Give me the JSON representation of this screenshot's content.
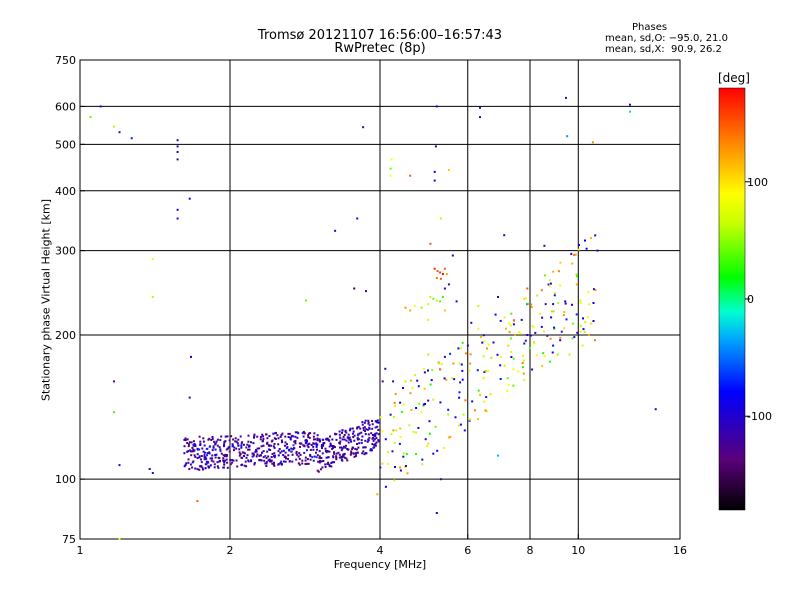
{
  "title_lines": [
    "Tromsø 20121107 16:56:00–16:57:43",
    "RwPretec (8p)"
  ],
  "stats": {
    "heading": "Phases",
    "line_o": "mean, sd,O: −95.0, 21.0",
    "line_x": "mean, sd,X:  90.9, 26.2"
  },
  "chart_data": {
    "type": "scatter",
    "xlabel": "Frequency [MHz]",
    "ylabel": "Stationary phase Virtual Height [km]",
    "x_scale": "log",
    "y_scale": "log",
    "xlim": [
      1,
      16
    ],
    "ylim": [
      75,
      750
    ],
    "x_ticks": [
      1,
      2,
      4,
      6,
      8,
      10,
      16
    ],
    "y_ticks": [
      75,
      100,
      200,
      300,
      400,
      500,
      600,
      750
    ],
    "x_gridlines": [
      2,
      4,
      6,
      8,
      10
    ],
    "y_gridlines": [
      100,
      200,
      300,
      400,
      500,
      600
    ],
    "grid": true,
    "colorbar": {
      "label": "[deg]",
      "range": [
        -180,
        180
      ],
      "ticks": [
        100,
        0,
        -100
      ]
    },
    "series": [
      {
        "points": [
          [
            1.05,
            570,
            40
          ],
          [
            1.1,
            600,
            -100
          ],
          [
            1.17,
            545,
            60
          ],
          [
            1.2,
            530,
            -110
          ],
          [
            1.27,
            515,
            -70
          ],
          [
            1.57,
            510,
            -120
          ],
          [
            1.57,
            495,
            -110
          ],
          [
            1.57,
            482,
            -100
          ],
          [
            1.57,
            465,
            -120
          ],
          [
            1.66,
            385,
            -90
          ],
          [
            1.57,
            365,
            -110
          ],
          [
            1.57,
            350,
            -120
          ],
          [
            1.4,
            288,
            80
          ],
          [
            1.4,
            240,
            60
          ],
          [
            1.67,
            180,
            -90
          ],
          [
            1.66,
            148,
            -120
          ],
          [
            1.17,
            160,
            -130
          ],
          [
            1.17,
            138,
            30
          ],
          [
            1.2,
            107,
            -100
          ],
          [
            1.38,
            105,
            -110
          ],
          [
            1.4,
            103,
            -120
          ],
          [
            1.72,
            90,
            150
          ],
          [
            1.2,
            75,
            90
          ],
          [
            2.84,
            236,
            40
          ],
          [
            3.25,
            330,
            -100
          ],
          [
            3.6,
            350,
            -100
          ],
          [
            3.7,
            543,
            -130
          ],
          [
            3.55,
            250,
            -150
          ],
          [
            3.75,
            247,
            -120
          ],
          [
            3.95,
            93,
            120
          ],
          [
            4.22,
            465,
            90
          ],
          [
            4.2,
            445,
            40
          ],
          [
            4.2,
            430,
            90
          ],
          [
            4.6,
            430,
            150
          ],
          [
            5.15,
            438,
            -90
          ],
          [
            5.18,
            495,
            -110
          ],
          [
            5.2,
            600,
            -90
          ],
          [
            5.15,
            420,
            -110
          ],
          [
            5.5,
            442,
            110
          ],
          [
            5.3,
            350,
            60
          ],
          [
            5.05,
            310,
            150
          ],
          [
            5.6,
            293,
            -100
          ],
          [
            6.35,
            596,
            -110
          ],
          [
            6.35,
            570,
            -100
          ],
          [
            7.1,
            323,
            -110
          ],
          [
            8.55,
            307,
            -110
          ],
          [
            9.45,
            625,
            -120
          ],
          [
            9.5,
            520,
            -40
          ],
          [
            10.7,
            505,
            130
          ],
          [
            12.7,
            605,
            -100
          ],
          [
            12.7,
            585,
            -20
          ],
          [
            14.3,
            140,
            -110
          ],
          [
            5.3,
            100,
            -120
          ],
          [
            5.2,
            85,
            -110
          ],
          [
            6.9,
            112,
            -30
          ],
          [
            5.15,
            275,
            170
          ],
          [
            5.22,
            272,
            150
          ],
          [
            5.28,
            270,
            160
          ],
          [
            5.35,
            268,
            180
          ],
          [
            5.4,
            275,
            150
          ],
          [
            5.45,
            268,
            120
          ],
          [
            5.2,
            263,
            140
          ],
          [
            5.3,
            262,
            150
          ],
          [
            5.5,
            255,
            -120
          ],
          [
            5.4,
            250,
            -100
          ],
          [
            5.05,
            240,
            60
          ],
          [
            5.12,
            238,
            40
          ],
          [
            5.2,
            236,
            60
          ],
          [
            5.28,
            235,
            40
          ],
          [
            5.35,
            240,
            30
          ],
          [
            5.0,
            232,
            70
          ],
          [
            4.85,
            228,
            50
          ],
          [
            4.7,
            230,
            90
          ],
          [
            4.5,
            228,
            130
          ],
          [
            4.6,
            225,
            120
          ],
          [
            5.0,
            215,
            70
          ],
          [
            5.4,
            225,
            110
          ],
          [
            5.7,
            235,
            -90
          ],
          [
            6.9,
            240,
            -110
          ],
          [
            6.1,
            212,
            -120
          ],
          [
            6.3,
            230,
            60
          ],
          [
            7.9,
            250,
            150
          ],
          [
            8.45,
            248,
            140
          ],
          [
            7.9,
            232,
            -110
          ],
          [
            8.6,
            232,
            -120
          ],
          [
            8.9,
            232,
            -100
          ],
          [
            7.7,
            215,
            -90
          ],
          [
            7.9,
            200,
            -110
          ],
          [
            8.2,
            202,
            -120
          ],
          [
            8.9,
            190,
            -100
          ],
          [
            9.2,
            195,
            -110
          ],
          [
            10.5,
            200,
            120
          ],
          [
            10.8,
            195,
            140
          ],
          [
            10.2,
            190,
            70
          ],
          [
            9.6,
            182,
            60
          ],
          [
            5.0,
            182,
            60
          ],
          [
            4.9,
            170,
            80
          ],
          [
            4.7,
            165,
            100
          ],
          [
            4.5,
            160,
            60
          ],
          [
            4.65,
            155,
            80
          ],
          [
            4.1,
            170,
            -110
          ],
          [
            4.05,
            160,
            -130
          ],
          [
            4.25,
            160,
            -100
          ],
          [
            5.4,
            180,
            -120
          ],
          [
            5.25,
            175,
            -100
          ]
        ]
      }
    ]
  }
}
